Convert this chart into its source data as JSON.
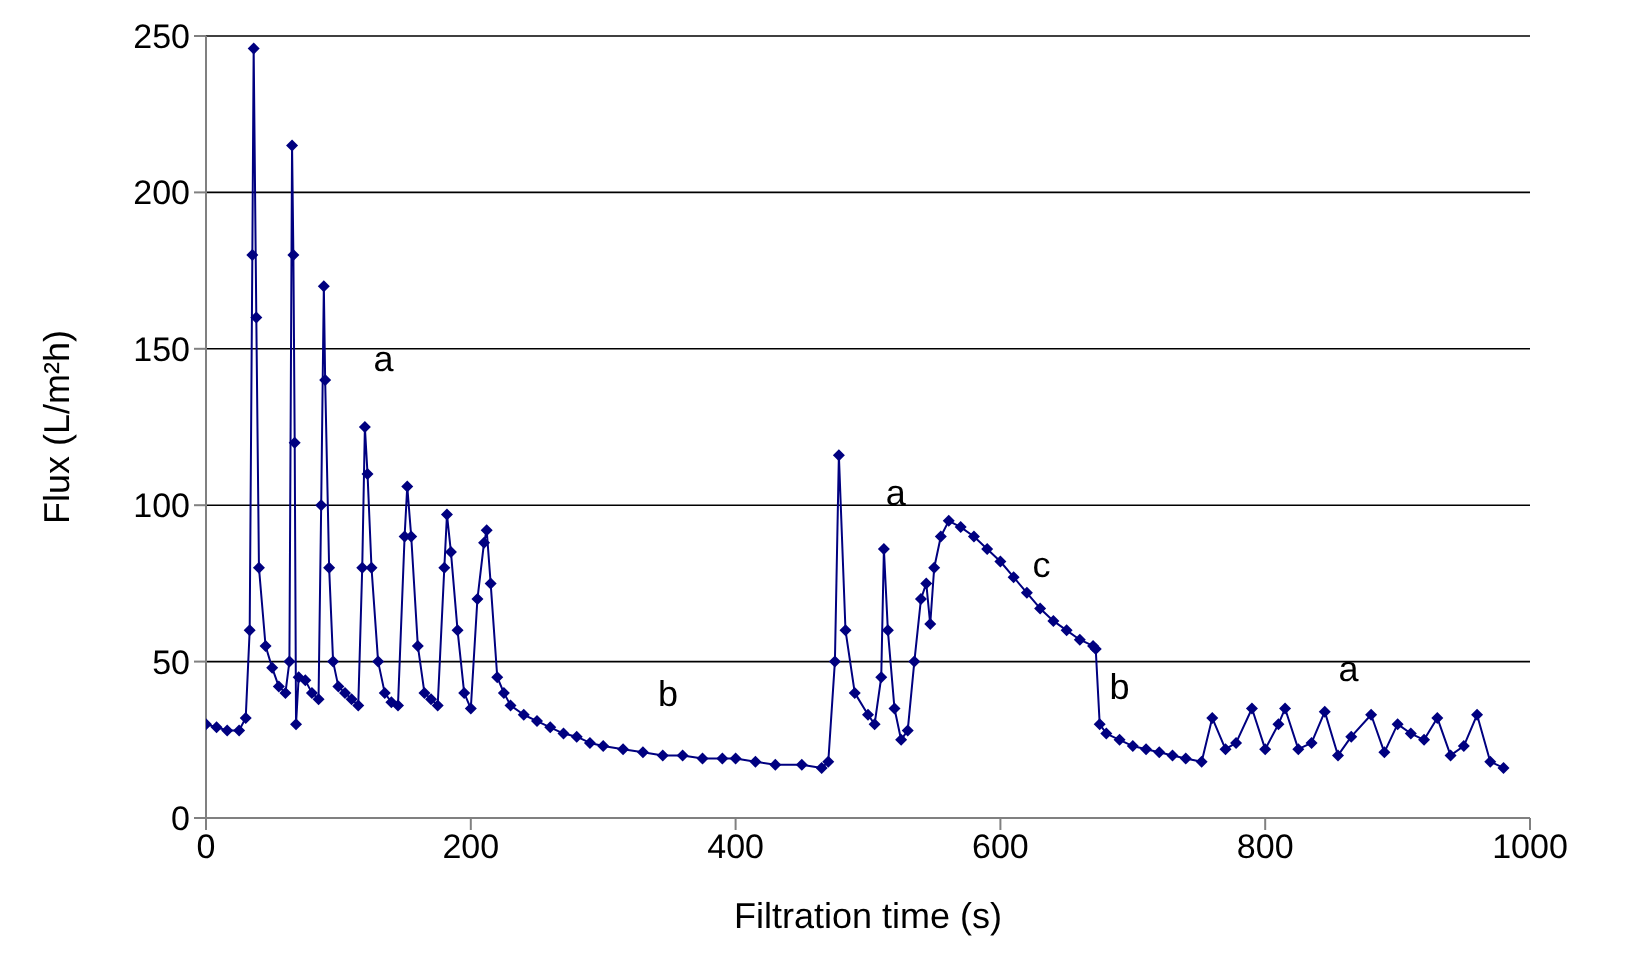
{
  "chart_data": {
    "type": "line",
    "xlabel": "Filtration time (s)",
    "ylabel": "Flux (L/m²h)",
    "xlim": [
      0,
      1000
    ],
    "xticks": [
      0,
      200,
      400,
      600,
      800,
      1000
    ],
    "ylim": [
      0,
      250
    ],
    "yticks": [
      0,
      50,
      100,
      150,
      200,
      250
    ],
    "grid": "y",
    "marker": "diamond",
    "line_style": "solid",
    "legend": false,
    "annotations": [
      "a",
      "b",
      "a",
      "c",
      "b",
      "a"
    ],
    "series": [
      {
        "color": "#000080",
        "x": [
          0,
          8,
          16,
          25,
          30,
          33,
          35,
          36,
          38,
          40,
          45,
          50,
          55,
          60,
          63,
          65,
          66,
          67,
          68,
          70,
          75,
          80,
          85,
          87,
          89,
          90,
          93,
          96,
          100,
          105,
          110,
          115,
          118,
          120,
          122,
          125,
          130,
          135,
          140,
          145,
          150,
          152,
          155,
          160,
          165,
          170,
          175,
          180,
          182,
          185,
          190,
          195,
          200,
          205,
          210,
          212,
          215,
          220,
          225,
          230,
          240,
          250,
          260,
          270,
          280,
          290,
          300,
          315,
          330,
          345,
          360,
          375,
          390,
          400,
          415,
          430,
          450,
          465,
          470,
          475,
          478,
          483,
          490,
          500,
          505,
          510,
          512,
          515,
          520,
          525,
          530,
          535,
          540,
          544,
          547,
          550,
          555,
          561,
          570,
          580,
          590,
          600,
          610,
          620,
          630,
          640,
          650,
          660,
          670,
          672,
          675,
          680,
          690,
          700,
          710,
          720,
          730,
          740,
          752,
          760,
          770,
          778,
          790,
          800,
          810,
          815,
          825,
          835,
          845,
          855,
          865,
          880,
          890,
          900,
          910,
          920,
          930,
          940,
          950,
          960,
          970,
          980
        ],
        "values": [
          30,
          29,
          28,
          28,
          32,
          60,
          180,
          246,
          160,
          80,
          55,
          48,
          42,
          40,
          50,
          215,
          180,
          120,
          30,
          45,
          44,
          40,
          38,
          100,
          170,
          140,
          80,
          50,
          42,
          40,
          38,
          36,
          80,
          125,
          110,
          80,
          50,
          40,
          37,
          36,
          90,
          106,
          90,
          55,
          40,
          38,
          36,
          80,
          97,
          85,
          60,
          40,
          35,
          70,
          88,
          92,
          75,
          45,
          40,
          36,
          33,
          31,
          29,
          27,
          26,
          24,
          23,
          22,
          21,
          20,
          20,
          19,
          19,
          19,
          18,
          17,
          17,
          16,
          18,
          50,
          116,
          60,
          40,
          33,
          30,
          45,
          86,
          60,
          35,
          25,
          28,
          50,
          70,
          75,
          62,
          80,
          90,
          95,
          93,
          90,
          86,
          82,
          77,
          72,
          67,
          63,
          60,
          57,
          55,
          54,
          30,
          27,
          25,
          23,
          22,
          21,
          20,
          19,
          18,
          32,
          22,
          24,
          35,
          22,
          30,
          35,
          22,
          24,
          34,
          20,
          26,
          33,
          21,
          30,
          27,
          25,
          32,
          20,
          23,
          33,
          18,
          16
        ]
      }
    ]
  }
}
